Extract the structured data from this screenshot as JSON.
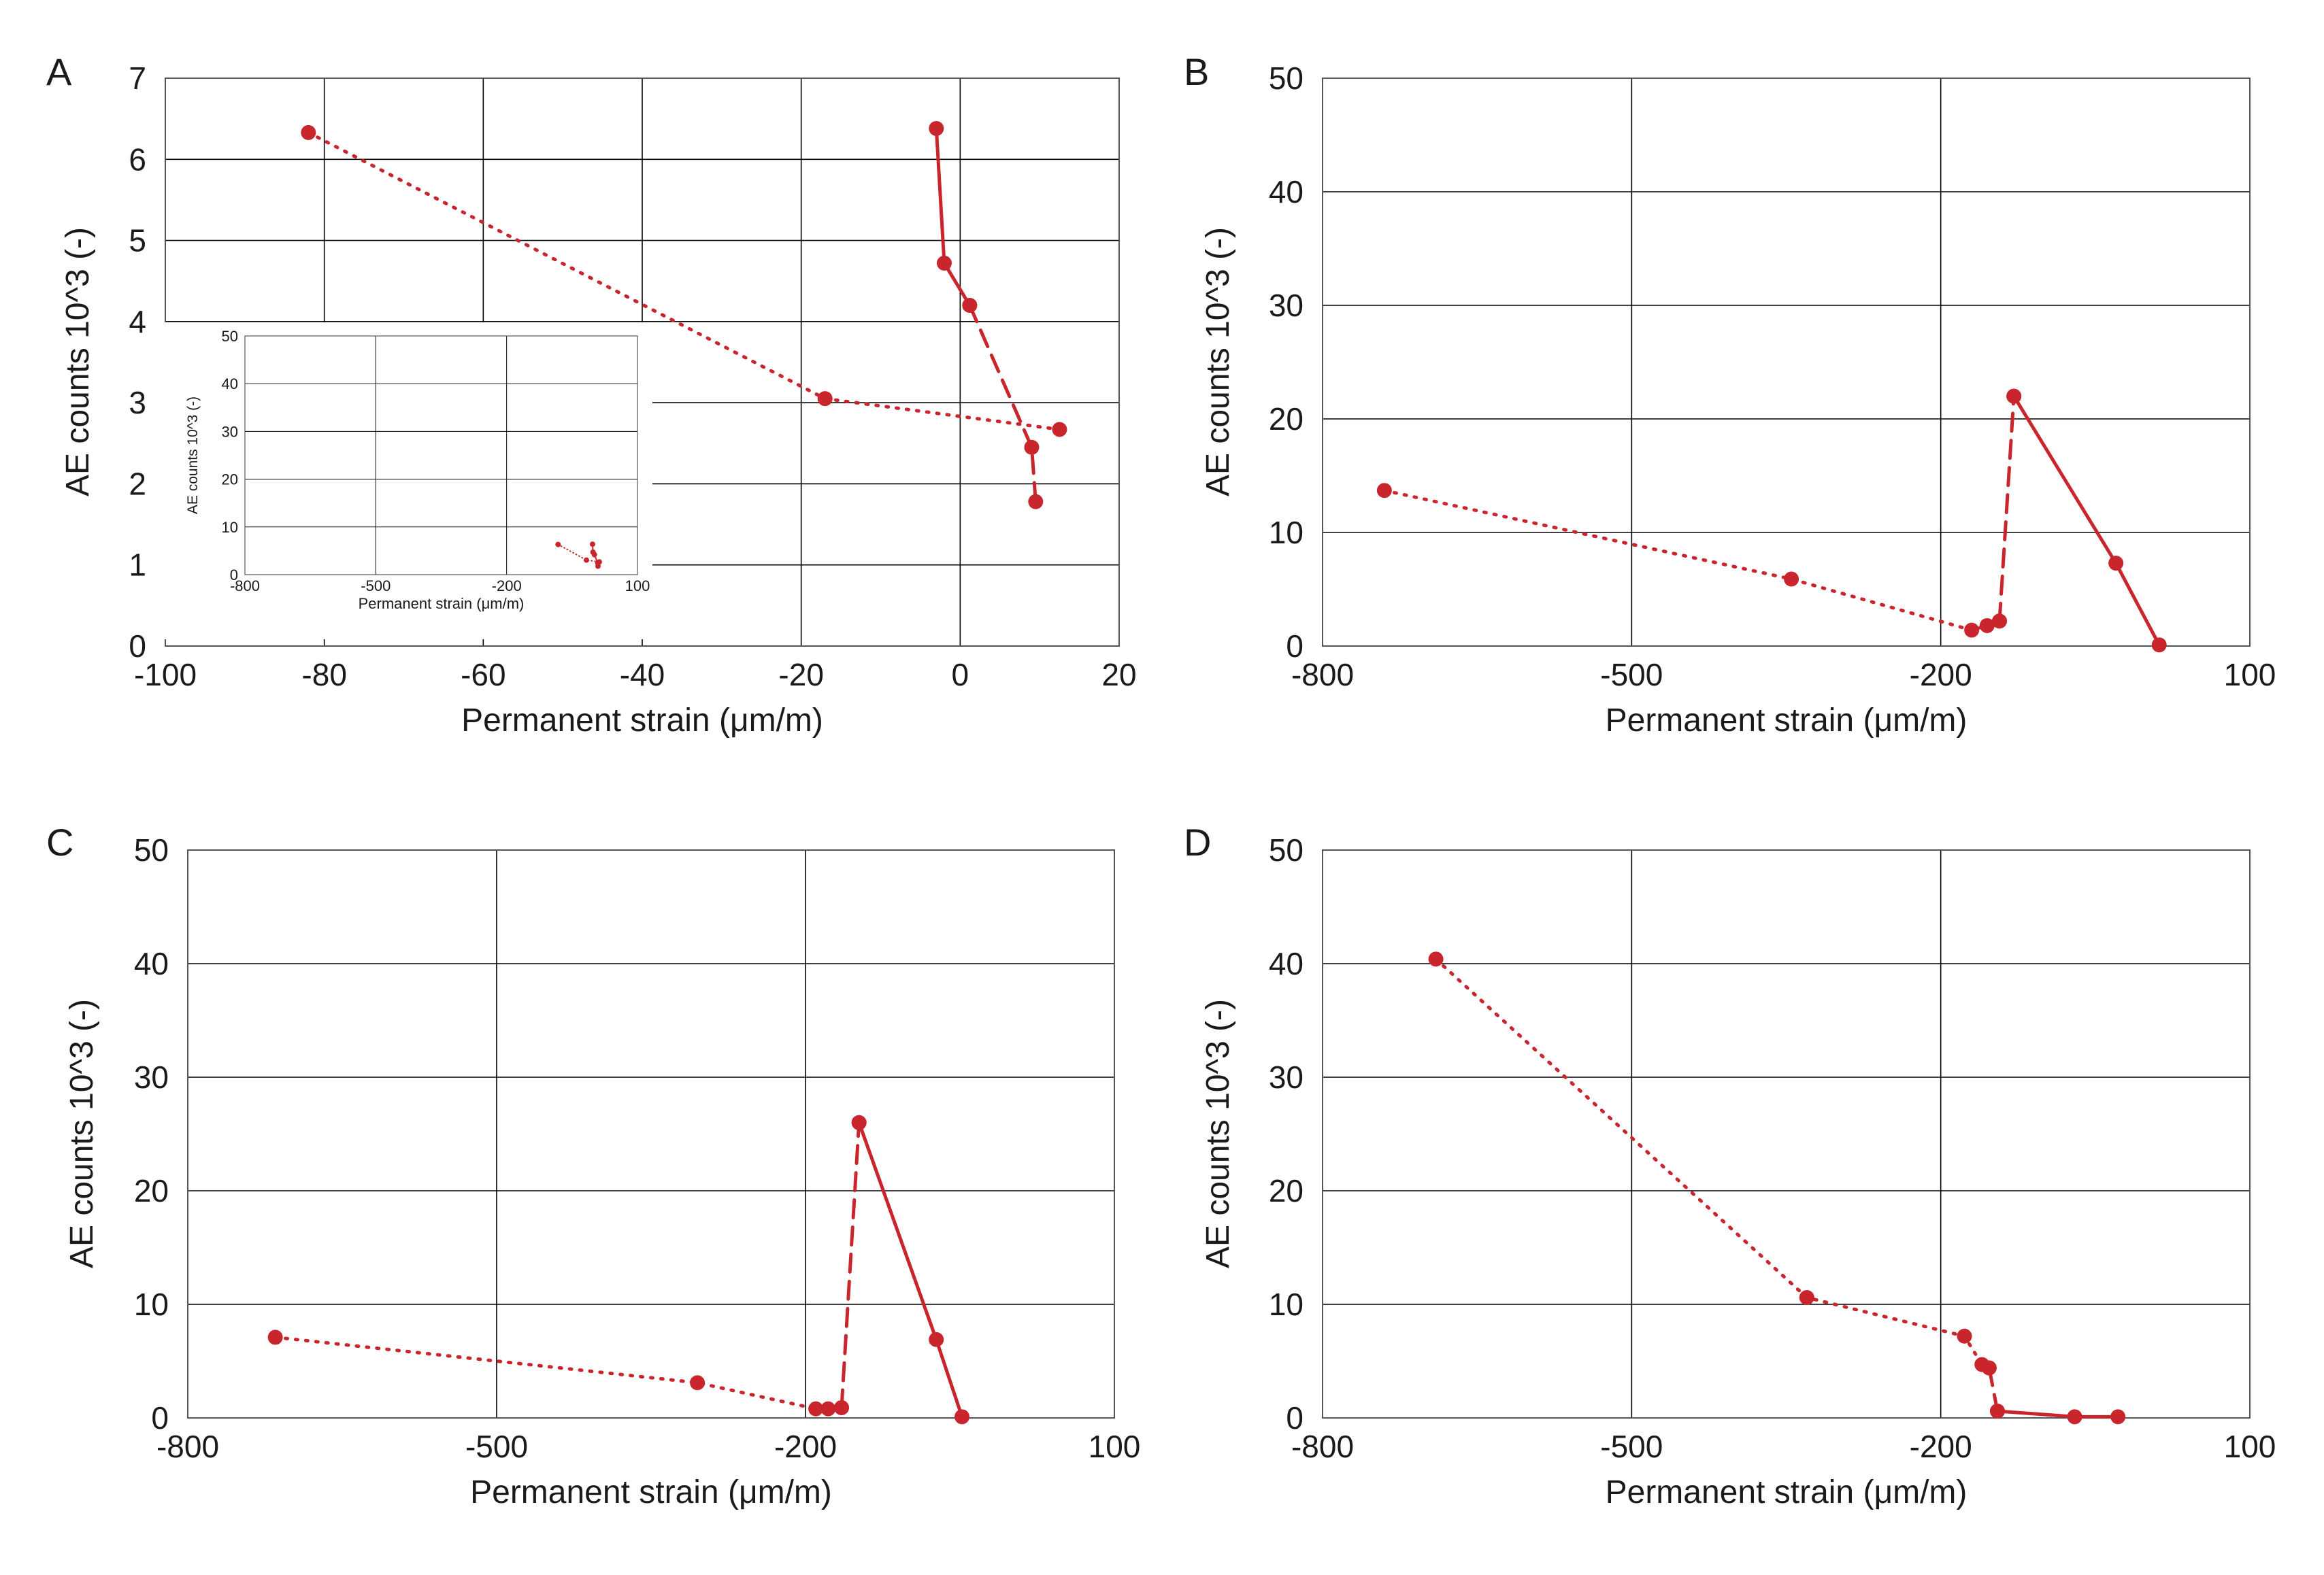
{
  "figure": {
    "accent_color": "#c8252c",
    "grid_color": "#000000"
  },
  "chart_data": [
    {
      "panel_label": "A",
      "type": "line",
      "xlabel": "Permanent strain (μm/m)",
      "ylabel": "AE counts 10^3 (-)",
      "xlim": [
        -100,
        20
      ],
      "ylim": [
        0,
        7
      ],
      "xticks": [
        -100,
        -80,
        -60,
        -40,
        -20,
        0,
        20
      ],
      "yticks": [
        0,
        1,
        2,
        3,
        4,
        5,
        6,
        7
      ],
      "grid": true,
      "series": [
        {
          "style": "dotted",
          "points": [
            [
              -82,
              6.33
            ],
            [
              -17,
              3.05
            ],
            [
              12.5,
              2.67
            ]
          ]
        },
        {
          "style": "solid",
          "points": [
            [
              -3,
              6.38
            ],
            [
              -2,
              4.72
            ],
            [
              1.2,
              4.2
            ]
          ]
        },
        {
          "style": "dashed",
          "points": [
            [
              1.2,
              4.2
            ],
            [
              9,
              2.45
            ],
            [
              9.5,
              1.78
            ]
          ]
        }
      ],
      "inset": {
        "xlabel": "Permanent strain (μm/m)",
        "ylabel": "AE counts 10^3 (-)",
        "xlim": [
          -800,
          100
        ],
        "ylim": [
          0,
          50
        ],
        "xticks": [
          -800,
          -500,
          -200,
          100
        ],
        "yticks": [
          0,
          10,
          20,
          30,
          40,
          50
        ],
        "grid": true,
        "series": [
          {
            "style": "dotted",
            "points": [
              [
                -82,
                6.33
              ],
              [
                -17,
                3.05
              ],
              [
                12.5,
                2.67
              ]
            ]
          },
          {
            "style": "solid",
            "points": [
              [
                -3,
                6.38
              ],
              [
                -2,
                4.72
              ],
              [
                1.2,
                4.2
              ]
            ]
          },
          {
            "style": "dashed",
            "points": [
              [
                1.2,
                4.2
              ],
              [
                9,
                2.45
              ],
              [
                9.5,
                1.78
              ]
            ]
          }
        ]
      }
    },
    {
      "panel_label": "B",
      "type": "line",
      "xlabel": "Permanent strain (μm/m)",
      "ylabel": "AE counts 10^3 (-)",
      "xlim": [
        -800,
        100
      ],
      "ylim": [
        0,
        50
      ],
      "xticks": [
        -800,
        -500,
        -200,
        100
      ],
      "yticks": [
        0,
        10,
        20,
        30,
        40,
        50
      ],
      "grid": true,
      "series": [
        {
          "style": "dotted",
          "points": [
            [
              -740,
              13.7
            ],
            [
              -345,
              5.9
            ],
            [
              -170,
              1.4
            ],
            [
              -155,
              1.8
            ],
            [
              -143,
              2.2
            ]
          ]
        },
        {
          "style": "dashed",
          "points": [
            [
              -143,
              2.2
            ],
            [
              -129,
              22
            ]
          ]
        },
        {
          "style": "solid",
          "points": [
            [
              -129,
              22
            ],
            [
              -30,
              7.3
            ],
            [
              12,
              0.1
            ]
          ]
        }
      ]
    },
    {
      "panel_label": "C",
      "type": "line",
      "xlabel": "Permanent strain (μm/m)",
      "ylabel": "AE counts 10^3 (-)",
      "xlim": [
        -800,
        100
      ],
      "ylim": [
        0,
        50
      ],
      "xticks": [
        -800,
        -500,
        -200,
        100
      ],
      "yticks": [
        0,
        10,
        20,
        30,
        40,
        50
      ],
      "grid": true,
      "series": [
        {
          "style": "dotted",
          "points": [
            [
              -715,
              7.1
            ],
            [
              -305,
              3.1
            ],
            [
              -190,
              0.8
            ],
            [
              -178,
              0.8
            ],
            [
              -165,
              0.9
            ]
          ]
        },
        {
          "style": "dashed",
          "points": [
            [
              -165,
              0.9
            ],
            [
              -148,
              26
            ]
          ]
        },
        {
          "style": "solid",
          "points": [
            [
              -148,
              26
            ],
            [
              -73,
              6.9
            ],
            [
              -48,
              0.1
            ]
          ]
        }
      ]
    },
    {
      "panel_label": "D",
      "type": "line",
      "xlabel": "Permanent strain (μm/m)",
      "ylabel": "AE counts 10^3 (-)",
      "xlim": [
        -800,
        100
      ],
      "ylim": [
        0,
        50
      ],
      "xticks": [
        -800,
        -500,
        -200,
        100
      ],
      "yticks": [
        0,
        10,
        20,
        30,
        40,
        50
      ],
      "grid": true,
      "series": [
        {
          "style": "dotted",
          "points": [
            [
              -690,
              40.4
            ],
            [
              -330,
              10.6
            ],
            [
              -177,
              7.2
            ],
            [
              -160,
              4.7
            ],
            [
              -153,
              4.4
            ]
          ]
        },
        {
          "style": "dashed",
          "points": [
            [
              -153,
              4.4
            ],
            [
              -145,
              0.6
            ]
          ]
        },
        {
          "style": "solid",
          "points": [
            [
              -145,
              0.6
            ],
            [
              -70,
              0.1
            ],
            [
              -28,
              0.1
            ]
          ]
        }
      ]
    }
  ]
}
